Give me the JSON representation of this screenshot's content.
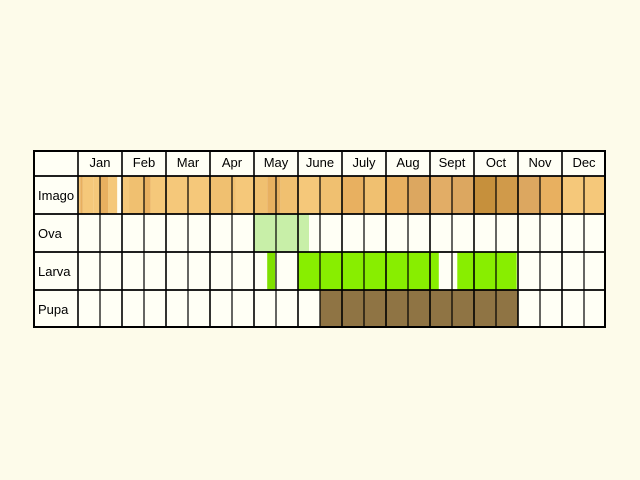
{
  "months": [
    "Jan",
    "Feb",
    "Mar",
    "Apr",
    "May",
    "June",
    "July",
    "Aug",
    "Sept",
    "Oct",
    "Nov",
    "Dec"
  ],
  "rows": [
    {
      "label": "Imago",
      "segments": [
        {
          "from": 0.0,
          "to": 0.05,
          "color": "#f5c87a"
        },
        {
          "from": 0.05,
          "to": 0.11,
          "color": "#e8b060"
        },
        {
          "from": 0.11,
          "to": 0.36,
          "color": "#f5c87a"
        },
        {
          "from": 0.36,
          "to": 0.5,
          "color": "#f5c87a"
        },
        {
          "from": 0.5,
          "to": 0.69,
          "color": "#e8b060"
        },
        {
          "from": 0.69,
          "to": 0.89,
          "color": "#f5c87a"
        },
        {
          "from": 1.0,
          "to": 1.16,
          "color": "#f5c87a"
        },
        {
          "from": 1.16,
          "to": 1.5,
          "color": "#f0c070"
        },
        {
          "from": 1.5,
          "to": 1.65,
          "color": "#e8b060"
        },
        {
          "from": 1.65,
          "to": 2.0,
          "color": "#f5c87a"
        },
        {
          "from": 2.0,
          "to": 3.0,
          "color": "#f5c87a"
        },
        {
          "from": 3.0,
          "to": 3.58,
          "color": "#f0c070"
        },
        {
          "from": 3.58,
          "to": 4.0,
          "color": "#f5c87a"
        },
        {
          "from": 4.0,
          "to": 4.3,
          "color": "#f0c070"
        },
        {
          "from": 4.3,
          "to": 4.6,
          "color": "#e8b060"
        },
        {
          "from": 4.6,
          "to": 5.0,
          "color": "#f0c070"
        },
        {
          "from": 5.0,
          "to": 5.5,
          "color": "#f5c87a"
        },
        {
          "from": 5.5,
          "to": 6.0,
          "color": "#f0c070"
        },
        {
          "from": 6.0,
          "to": 6.5,
          "color": "#e8b060"
        },
        {
          "from": 6.5,
          "to": 7.0,
          "color": "#f0c070"
        },
        {
          "from": 7.0,
          "to": 7.5,
          "color": "#e8b060"
        },
        {
          "from": 7.5,
          "to": 8.0,
          "color": "#dca760"
        },
        {
          "from": 8.0,
          "to": 8.5,
          "color": "#e2ad66"
        },
        {
          "from": 8.5,
          "to": 9.0,
          "color": "#dca760"
        },
        {
          "from": 9.0,
          "to": 9.5,
          "color": "#c6903c"
        },
        {
          "from": 9.5,
          "to": 10.0,
          "color": "#d09a4a"
        },
        {
          "from": 10.0,
          "to": 10.5,
          "color": "#dca760"
        },
        {
          "from": 10.5,
          "to": 11.0,
          "color": "#e8b060"
        },
        {
          "from": 11.0,
          "to": 12.0,
          "color": "#f5c87a"
        }
      ]
    },
    {
      "label": "Ova",
      "segments": [
        {
          "from": 4.0,
          "to": 5.25,
          "color": "#c8efa8"
        }
      ]
    },
    {
      "label": "Larva",
      "segments": [
        {
          "from": 4.3,
          "to": 4.48,
          "color": "#7fe000"
        },
        {
          "from": 5.0,
          "to": 8.2,
          "color": "#88ee00"
        },
        {
          "from": 8.62,
          "to": 9.97,
          "color": "#88ee00"
        }
      ]
    },
    {
      "label": "Pupa",
      "segments": [
        {
          "from": 5.5,
          "to": 10.0,
          "color": "#8f7444"
        }
      ]
    }
  ]
}
